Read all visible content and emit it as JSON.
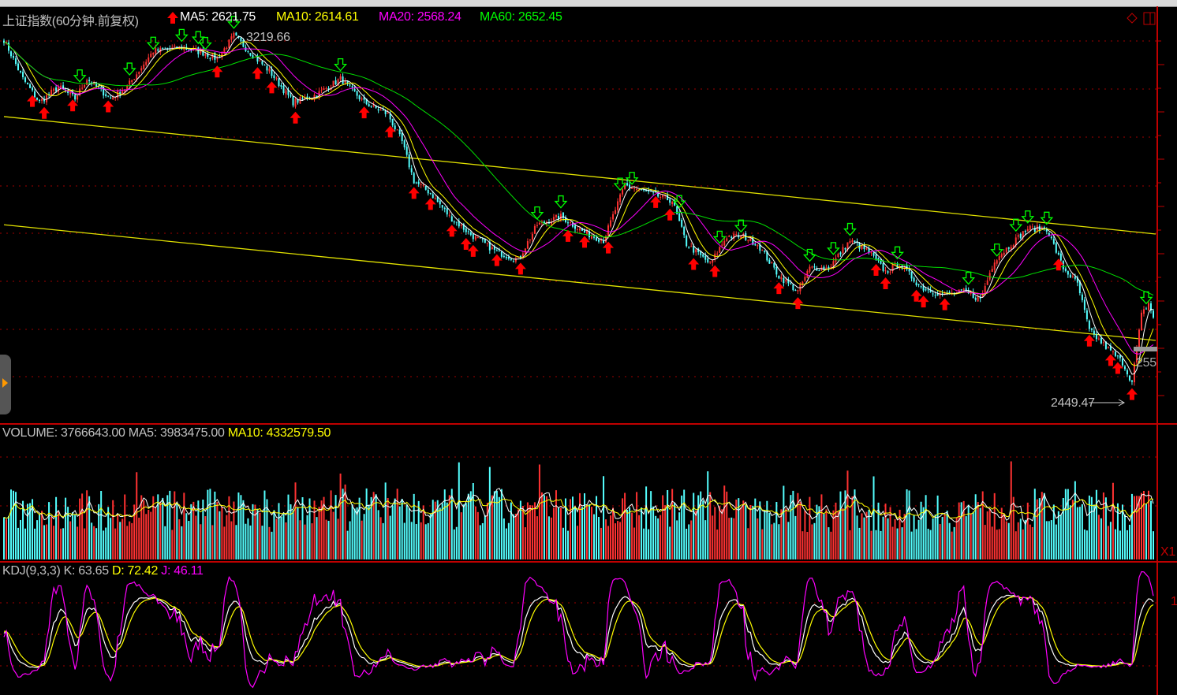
{
  "header": {
    "title": "上证指数(60分钟.前复权)",
    "ma5": "MA5: 2621.75",
    "ma10": "MA10: 2614.61",
    "ma20": "MA20: 2568.24",
    "ma60": "MA60: 2652.45"
  },
  "volume_header": {
    "volume": "VOLUME: 3766643.00",
    "ma5": "MA5: 3983475.00",
    "ma10": "MA10: 4332579.50"
  },
  "kdj_header": {
    "name": "KDJ(9,3,3)",
    "k": "K: 63.65",
    "d": "D: 72.42",
    "j": "J: 46.11"
  },
  "annotations": {
    "high_label": "3219.66",
    "low_label": "2449.47",
    "last_price_label": "255",
    "volume_axis_label": "X1",
    "kdj_axis_label": "1"
  },
  "colors": {
    "up": "#ff3232",
    "down": "#54ffff",
    "ma5": "#ffffff",
    "ma10": "#ffff00",
    "ma20": "#ff00ff",
    "ma60": "#00e000",
    "trendline": "#e0e000",
    "grid": "#a00000",
    "buy_signal": "#ff0000",
    "sell_signal": "#00ff00"
  },
  "chart_data": {
    "type": "candlestick",
    "title": "上证指数(60分钟.前复权)",
    "bar_count": 486,
    "price_high": 3219.66,
    "price_low": 2449.47,
    "close_path": {
      "bar_index": [
        0,
        8,
        15,
        23,
        30,
        35,
        45,
        52,
        63,
        75,
        85,
        90,
        97,
        105,
        112,
        122,
        132,
        142,
        152,
        162,
        168,
        173,
        180,
        188,
        198,
        208,
        217,
        225,
        235,
        245,
        253,
        262,
        272,
        282,
        288,
        298,
        305,
        312,
        318,
        327,
        335,
        340,
        348,
        357,
        365,
        372,
        378,
        387,
        397,
        405,
        412,
        418,
        432,
        440,
        447,
        453,
        458,
        465,
        472,
        476,
        480,
        483,
        485
      ],
      "close": [
        3202,
        3117,
        3066,
        3100,
        3074,
        3117,
        3074,
        3100,
        3177,
        3185,
        3172,
        3160,
        3211,
        3168,
        3134,
        3066,
        3083,
        3117,
        3066,
        3040,
        2980,
        2895,
        2869,
        2818,
        2775,
        2741,
        2724,
        2800,
        2818,
        2783,
        2766,
        2886,
        2869,
        2852,
        2758,
        2715,
        2775,
        2775,
        2758,
        2689,
        2655,
        2706,
        2706,
        2766,
        2741,
        2698,
        2715,
        2664,
        2647,
        2655,
        2638,
        2724,
        2792,
        2792,
        2706,
        2672,
        2570,
        2535,
        2501,
        2458,
        2604,
        2629,
        2600
      ]
    },
    "trendlines": [
      {
        "from": {
          "bar_index": 0,
          "price": 3035
        },
        "to": {
          "bar_index": 486,
          "price": 2780
        }
      },
      {
        "from": {
          "bar_index": 0,
          "price": 2800
        },
        "to": {
          "bar_index": 486,
          "price": 2549
        }
      }
    ],
    "buy_signals": [
      12,
      17,
      29,
      44,
      90,
      107,
      113,
      123,
      152,
      163,
      173,
      180,
      189,
      195,
      198,
      208,
      218,
      238,
      245,
      255,
      275,
      281,
      291,
      300,
      327,
      335,
      368,
      372,
      385,
      388,
      397,
      445,
      458,
      467,
      470,
      476
    ],
    "sell_signals": [
      32,
      53,
      63,
      75,
      82,
      85,
      97,
      142,
      225,
      235,
      260,
      265,
      285,
      302,
      311,
      340,
      350,
      357,
      377,
      407,
      419,
      427,
      432,
      440,
      482
    ],
    "moving_averages": [
      "MA5",
      "MA10",
      "MA20",
      "MA60"
    ],
    "last_values": {
      "ma5": 2621.75,
      "ma10": 2614.61,
      "ma20": 2568.24,
      "ma60": 2652.45,
      "volume": 3766643.0,
      "vol_ma5": 3983475.0,
      "vol_ma10": 4332579.5,
      "k": 63.65,
      "d": 72.42,
      "j": 46.11
    }
  }
}
